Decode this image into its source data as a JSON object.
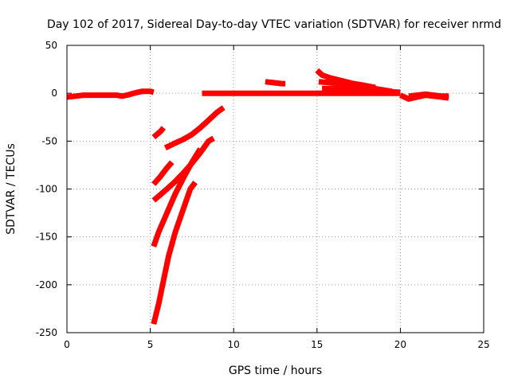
{
  "chart_data": {
    "type": "scatter",
    "title": "Day 102 of 2017, Sidereal Day-to-day VTEC variation (SDTVAR) for receiver nrmd",
    "xlabel": "GPS time / hours",
    "ylabel": "SDTVAR / TECUs",
    "xlim": [
      0,
      25
    ],
    "ylim": [
      -250,
      50
    ],
    "x_ticks": [
      0,
      5,
      10,
      15,
      20,
      25
    ],
    "y_ticks": [
      -250,
      -200,
      -150,
      -100,
      -50,
      0,
      50
    ],
    "grid": true,
    "color": "#ff0000",
    "series": [
      {
        "name": "seg-1",
        "points": [
          [
            0,
            -4
          ],
          [
            0.5,
            -3
          ],
          [
            1,
            -2
          ],
          [
            1.5,
            -2
          ],
          [
            2,
            -2
          ],
          [
            2.5,
            -2
          ],
          [
            3,
            -2
          ],
          [
            3.3,
            -3
          ],
          [
            3.6,
            -2
          ],
          [
            4,
            0
          ],
          [
            4.5,
            2
          ],
          [
            5,
            2
          ],
          [
            5.2,
            1
          ]
        ]
      },
      {
        "name": "seg-2",
        "points": [
          [
            5.2,
            -46
          ],
          [
            5.4,
            -43
          ],
          [
            5.6,
            -40
          ],
          [
            5.8,
            -36
          ]
        ]
      },
      {
        "name": "seg-3",
        "points": [
          [
            5.9,
            -57
          ],
          [
            6.5,
            -52
          ],
          [
            7,
            -48
          ],
          [
            7.5,
            -43
          ],
          [
            8,
            -36
          ],
          [
            8.5,
            -28
          ],
          [
            9,
            -20
          ],
          [
            9.4,
            -15
          ]
        ]
      },
      {
        "name": "seg-4",
        "points": [
          [
            5.2,
            -95
          ],
          [
            5.6,
            -87
          ],
          [
            6,
            -78
          ],
          [
            6.3,
            -72
          ]
        ]
      },
      {
        "name": "seg-5",
        "points": [
          [
            5.2,
            -112
          ],
          [
            5.6,
            -106
          ],
          [
            6,
            -100
          ],
          [
            6.5,
            -92
          ],
          [
            7,
            -83
          ],
          [
            7.5,
            -73
          ],
          [
            8,
            -62
          ],
          [
            8.5,
            -50
          ],
          [
            8.8,
            -47
          ]
        ]
      },
      {
        "name": "seg-6",
        "points": [
          [
            5.2,
            -160
          ],
          [
            5.5,
            -145
          ],
          [
            6,
            -125
          ],
          [
            6.5,
            -105
          ],
          [
            7,
            -88
          ],
          [
            7.5,
            -72
          ],
          [
            8,
            -58
          ]
        ]
      },
      {
        "name": "seg-7",
        "points": [
          [
            5.2,
            -241
          ],
          [
            5.5,
            -220
          ],
          [
            5.8,
            -195
          ],
          [
            6.1,
            -170
          ],
          [
            6.5,
            -145
          ],
          [
            7,
            -120
          ],
          [
            7.4,
            -100
          ],
          [
            7.7,
            -93
          ]
        ]
      },
      {
        "name": "seg-8",
        "points": [
          [
            8.1,
            0
          ],
          [
            9,
            0
          ],
          [
            10,
            0
          ],
          [
            11,
            0
          ],
          [
            12,
            0
          ],
          [
            13,
            0
          ],
          [
            14,
            0
          ],
          [
            15,
            0
          ],
          [
            16,
            0
          ],
          [
            17,
            0
          ],
          [
            18,
            0
          ],
          [
            19,
            0
          ],
          [
            20,
            0
          ]
        ]
      },
      {
        "name": "seg-9",
        "points": [
          [
            11.9,
            12
          ],
          [
            12.4,
            11
          ],
          [
            12.9,
            10
          ],
          [
            13.1,
            10
          ]
        ]
      },
      {
        "name": "seg-10",
        "points": [
          [
            15,
            24
          ],
          [
            15.3,
            19
          ],
          [
            15.8,
            16
          ],
          [
            16.5,
            13
          ],
          [
            17.2,
            10
          ],
          [
            17.9,
            8
          ],
          [
            18.5,
            6
          ]
        ]
      },
      {
        "name": "seg-11",
        "points": [
          [
            15.1,
            12
          ],
          [
            15.8,
            11
          ],
          [
            16.5,
            10
          ],
          [
            17.2,
            8
          ],
          [
            18,
            6
          ],
          [
            18.8,
            4
          ],
          [
            19.5,
            2
          ]
        ]
      },
      {
        "name": "seg-12",
        "points": [
          [
            15.3,
            5
          ],
          [
            16,
            5
          ],
          [
            17,
            4
          ],
          [
            18,
            3
          ],
          [
            19,
            2
          ],
          [
            20,
            1
          ]
        ]
      },
      {
        "name": "seg-13",
        "points": [
          [
            20,
            -2
          ],
          [
            20.5,
            -6
          ],
          [
            21,
            -4
          ],
          [
            21.5,
            -2
          ],
          [
            22,
            -3
          ],
          [
            22.5,
            -4
          ],
          [
            22.9,
            -5
          ]
        ]
      },
      {
        "name": "seg-14",
        "points": [
          [
            20.5,
            -3
          ],
          [
            21,
            -2
          ],
          [
            21.5,
            -1
          ],
          [
            22,
            -2
          ],
          [
            22.5,
            -3
          ],
          [
            22.9,
            -3
          ]
        ]
      }
    ]
  }
}
